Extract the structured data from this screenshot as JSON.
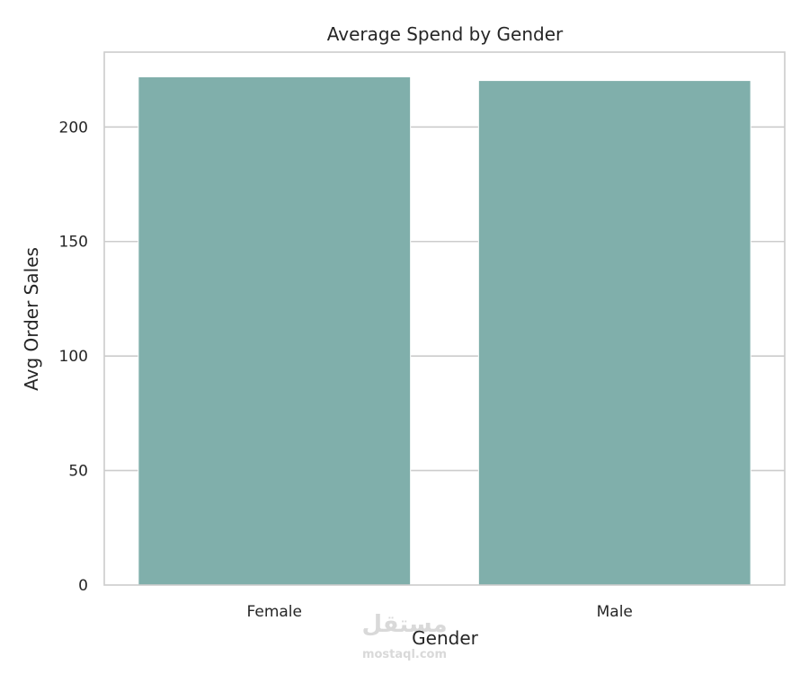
{
  "chart_data": {
    "type": "bar",
    "title": "Average Spend by Gender",
    "xlabel": "Gender",
    "ylabel": "Avg Order Sales",
    "categories": [
      "Female",
      "Male"
    ],
    "values": [
      221.9,
      220.3
    ],
    "ylim": [
      0,
      232.7
    ],
    "yticks": [
      0,
      50,
      100,
      150,
      200
    ],
    "grid": "y",
    "bar_color": "#80afab",
    "grid_color": "#cccccc",
    "spine_color": "#cccccc"
  },
  "watermark": {
    "logo_text": "مستقل",
    "site": "mostaql.com"
  }
}
